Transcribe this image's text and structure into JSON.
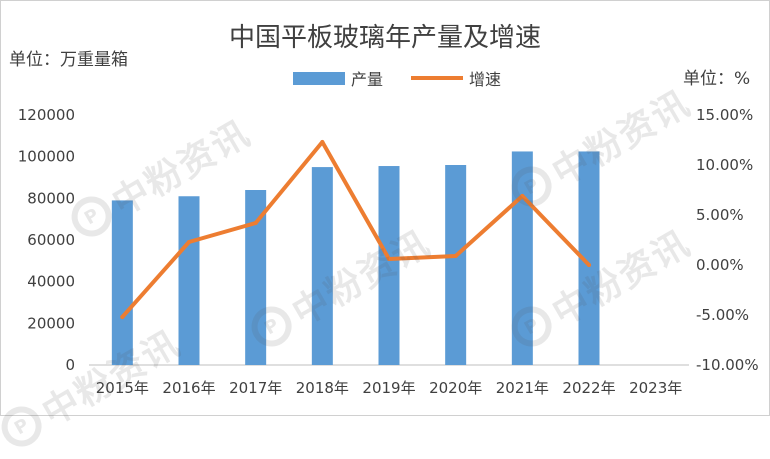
{
  "watermark": {
    "text": "中粉资讯",
    "logo": "P"
  },
  "chart_data": {
    "type": "bar+line",
    "title": "中国平板玻璃年产量及增速",
    "y_left_label": "单位：万重量箱",
    "y_right_label": "单位：%",
    "categories": [
      "2015年",
      "2016年",
      "2017年",
      "2018年",
      "2019年",
      "2020年",
      "2021年",
      "2022年",
      "2023年"
    ],
    "series": [
      {
        "name": "产量",
        "type": "bar",
        "axis": "left",
        "color": "#5b9bd5",
        "values": [
          79000,
          81000,
          84000,
          95000,
          95500,
          96000,
          102500,
          102500,
          null
        ]
      },
      {
        "name": "增速",
        "type": "line",
        "axis": "right",
        "color": "#ed7d31",
        "values": [
          -5.2,
          2.3,
          4.2,
          12.3,
          0.6,
          0.9,
          6.9,
          0.0,
          null
        ]
      }
    ],
    "y_left": {
      "min": 0,
      "max": 120000,
      "ticks": [
        "0",
        "20000",
        "40000",
        "60000",
        "80000",
        "100000",
        "120000"
      ]
    },
    "y_right": {
      "min": -10,
      "max": 15,
      "ticks": [
        "-10.00%",
        "-5.00%",
        "0.00%",
        "5.00%",
        "10.00%",
        "15.00%"
      ]
    },
    "gridlines": false,
    "legend_position": "top-center"
  }
}
